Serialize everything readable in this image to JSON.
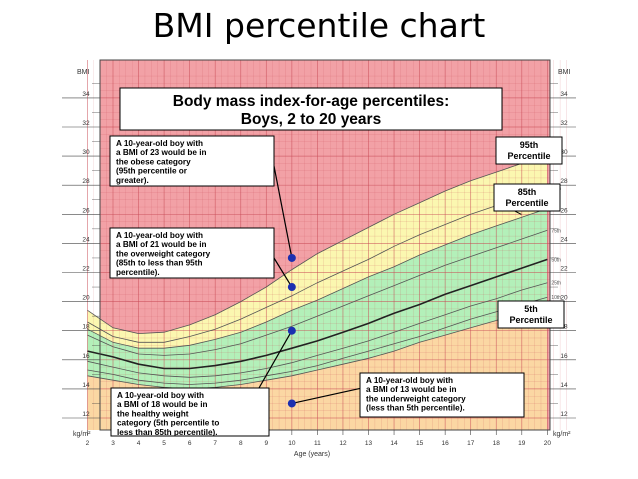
{
  "slide_title": "BMI percentile chart",
  "colors": {
    "obese": "#f2a1a6",
    "overweight": "#fbf7b0",
    "healthy": "#b3f0b9",
    "underweight": "#fbd7a3",
    "grid": "#c84a55",
    "curve": "#555555",
    "median": "#222222",
    "dot": "#1b2fb0"
  },
  "chart_data": {
    "type": "line",
    "title": "Body mass index-for-age percentiles:",
    "subtitle": "Boys, 2 to 20 years",
    "xlabel": "Age (years)",
    "ylabel": "BMI",
    "ylabel_unit": "kg/m²",
    "xlim": [
      2,
      20.8
    ],
    "ylim": [
      12,
      35.5
    ],
    "x_ticks": [
      2,
      3,
      4,
      5,
      6,
      7,
      8,
      9,
      10,
      11,
      12,
      13,
      14,
      15,
      16,
      17,
      18,
      19,
      20
    ],
    "y_ticks": [
      12,
      14,
      16,
      18,
      20,
      22,
      24,
      26,
      28,
      30,
      32,
      34
    ],
    "x": [
      2,
      3,
      4,
      5,
      6,
      7,
      8,
      9,
      10,
      11,
      12,
      13,
      14,
      15,
      16,
      17,
      18,
      19,
      20
    ],
    "series": [
      {
        "name": "95th",
        "values": [
          19.4,
          18.2,
          17.8,
          17.9,
          18.4,
          19.1,
          20.0,
          21.0,
          22.2,
          23.3,
          24.2,
          25.1,
          26.0,
          26.8,
          27.6,
          28.3,
          28.9,
          29.5,
          30.2
        ]
      },
      {
        "name": "90th",
        "values": [
          18.6,
          17.6,
          17.2,
          17.2,
          17.6,
          18.1,
          18.8,
          19.6,
          20.4,
          21.3,
          22.1,
          22.9,
          23.8,
          24.6,
          25.3,
          26.0,
          26.6,
          27.2,
          27.8
        ]
      },
      {
        "name": "85th",
        "values": [
          18.1,
          17.2,
          16.8,
          16.8,
          17.0,
          17.4,
          17.9,
          18.6,
          19.4,
          20.1,
          20.9,
          21.7,
          22.4,
          23.2,
          23.9,
          24.6,
          25.2,
          25.8,
          26.4
        ]
      },
      {
        "name": "75th",
        "values": [
          17.7,
          16.9,
          16.4,
          16.3,
          16.4,
          16.7,
          17.1,
          17.7,
          18.3,
          19.0,
          19.7,
          20.4,
          21.1,
          21.8,
          22.5,
          23.1,
          23.7,
          24.3,
          24.9
        ]
      },
      {
        "name": "50th",
        "values": [
          16.6,
          16.2,
          15.7,
          15.4,
          15.4,
          15.6,
          15.9,
          16.3,
          16.8,
          17.3,
          17.9,
          18.5,
          19.2,
          19.8,
          20.5,
          21.1,
          21.7,
          22.3,
          22.9
        ]
      },
      {
        "name": "25th",
        "values": [
          15.9,
          15.5,
          15.1,
          14.9,
          14.8,
          14.9,
          15.1,
          15.4,
          15.8,
          16.3,
          16.8,
          17.3,
          17.9,
          18.5,
          19.1,
          19.7,
          20.2,
          20.8,
          21.3
        ]
      },
      {
        "name": "10th",
        "values": [
          15.3,
          15.0,
          14.6,
          14.4,
          14.3,
          14.4,
          14.6,
          14.9,
          15.2,
          15.6,
          16.1,
          16.6,
          17.1,
          17.6,
          18.2,
          18.8,
          19.3,
          19.8,
          20.3
        ]
      },
      {
        "name": "5th",
        "values": [
          14.9,
          14.6,
          14.3,
          14.1,
          14.0,
          14.1,
          14.3,
          14.6,
          14.9,
          15.3,
          15.7,
          16.1,
          16.6,
          17.2,
          17.7,
          18.2,
          18.7,
          19.3,
          19.8
        ]
      }
    ],
    "points": [
      {
        "x": 10,
        "y": 23
      },
      {
        "x": 10,
        "y": 21
      },
      {
        "x": 10,
        "y": 18
      },
      {
        "x": 10,
        "y": 13
      }
    ],
    "percentile_labels": [
      {
        "text": "95th\nPercentile",
        "series": "95th"
      },
      {
        "text": "85th\nPercentile",
        "series": "85th"
      },
      {
        "text": "5th\nPercentile",
        "series": "5th"
      }
    ],
    "annotations": [
      {
        "text": "A 10-year-old boy with\na BMI of 23 would be in\nthe obese category\n(95th percentile or\ngreater).",
        "point": 0
      },
      {
        "text": "A 10-year-old boy with\na BMI of 21 would be in\nthe overweight category\n(85th to less than 95th\npercentile).",
        "point": 1
      },
      {
        "text": "A 10-year-old boy with\na BMI of 18 would be in\nthe healthy weight\ncategory (5th percentile to\nless than 85th percentile).",
        "point": 2
      },
      {
        "text": "A 10-year-old boy with\na BMI of 13 would be in\nthe underweight category\n(less than 5th percentile).",
        "point": 3
      }
    ]
  }
}
